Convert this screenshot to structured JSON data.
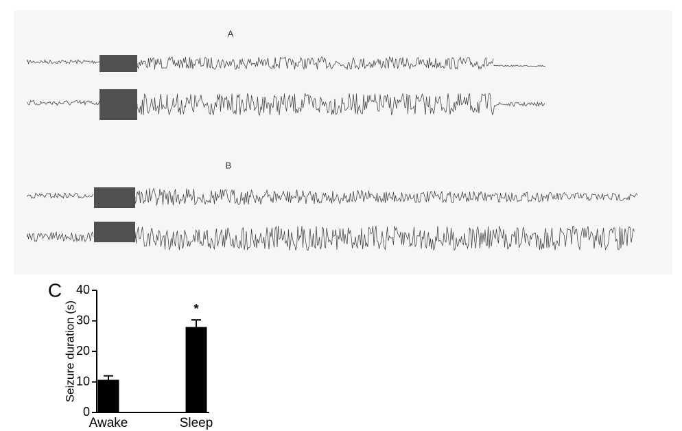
{
  "panel_labels": [
    "A",
    "B"
  ],
  "chart_data": {
    "type": "bar",
    "panel_label": "C",
    "y_label": "Seizure duration (s)",
    "categories": [
      "Awake",
      "Sleep"
    ],
    "values": [
      10.7,
      28
    ],
    "errors": [
      1.3,
      2.3
    ],
    "color": "#000000",
    "annotations": [
      {
        "text": "*",
        "category": 1,
        "y": 34.5
      }
    ],
    "ylim": [
      0,
      40
    ],
    "yticks": [
      0,
      10,
      20,
      30,
      40
    ]
  }
}
